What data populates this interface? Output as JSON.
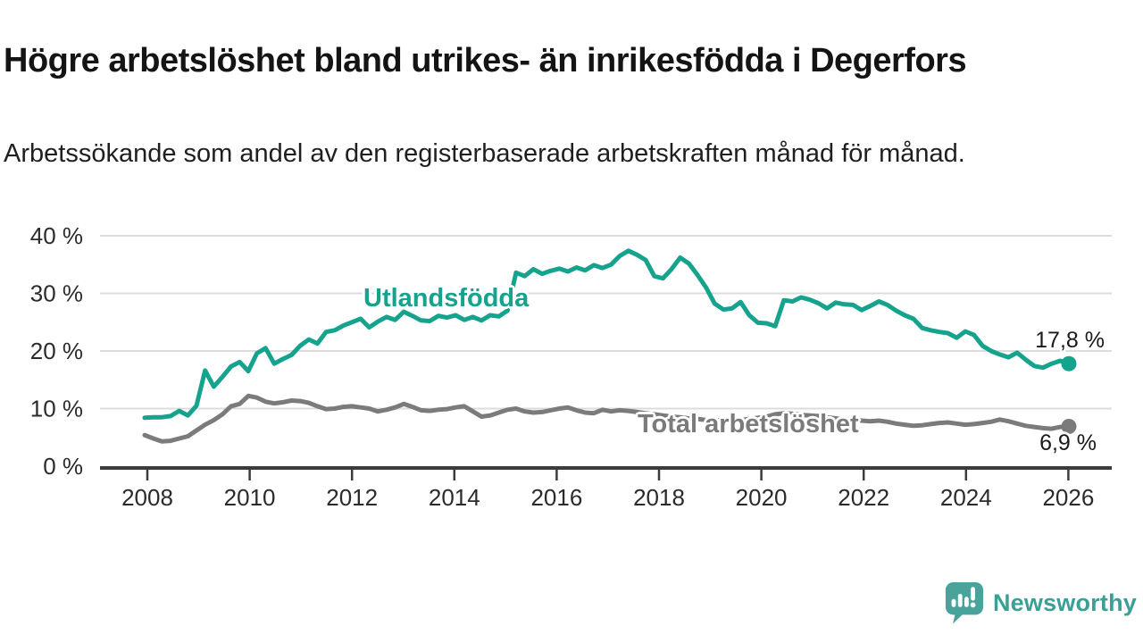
{
  "header": {
    "title": "Högre arbetslöshet bland utrikes- än inrikesfödda i Degerfors",
    "subtitle": "Arbetssökande som andel av den registerbaserade arbetskraften månad för månad."
  },
  "chart_data": {
    "type": "line",
    "title": "Högre arbetslöshet bland utrikes- än inrikesfödda i Degerfors",
    "x_unit": "year (monthly data, sampled every 2nd month)",
    "x_start_year": 2008.0,
    "x_end_year": 2025.9,
    "x_axis": {
      "ticks": [
        2008,
        2010,
        2012,
        2014,
        2016,
        2018,
        2020,
        2022,
        2024,
        2026
      ]
    },
    "y_axis": {
      "ticks": [
        0,
        10,
        20,
        30,
        40
      ],
      "tick_suffix": " %",
      "min": 0,
      "max": 40,
      "grid": true
    },
    "series": [
      {
        "name": "Utlandsfödda",
        "color": "#16a38d",
        "end_value": 17.8,
        "end_label": "17,8 %",
        "values": [
          8.4,
          8.5,
          8.5,
          8.7,
          9.6,
          8.8,
          10.5,
          16.6,
          13.8,
          15.5,
          17.3,
          18.1,
          16.5,
          19.6,
          20.5,
          17.8,
          18.6,
          19.3,
          20.9,
          22.0,
          21.3,
          23.3,
          23.6,
          24.4,
          25.0,
          25.6,
          24.1,
          25.1,
          25.9,
          25.4,
          26.8,
          26.1,
          25.3,
          25.2,
          26.1,
          25.8,
          26.2,
          25.4,
          25.9,
          25.3,
          26.2,
          26.0,
          27.0,
          33.6,
          33.0,
          34.2,
          33.4,
          33.9,
          34.3,
          33.8,
          34.5,
          34.0,
          34.9,
          34.4,
          35.0,
          36.5,
          37.4,
          36.7,
          35.8,
          33.0,
          32.6,
          34.2,
          36.2,
          35.2,
          33.2,
          31.0,
          28.2,
          27.2,
          27.4,
          28.5,
          26.2,
          24.9,
          24.8,
          24.3,
          28.8,
          28.6,
          29.3,
          28.9,
          28.3,
          27.4,
          28.4,
          28.1,
          28.0,
          27.1,
          27.8,
          28.6,
          28.0,
          27.0,
          26.2,
          25.6,
          24.0,
          23.6,
          23.3,
          23.1,
          22.3,
          23.4,
          22.8,
          20.9,
          20.0,
          19.4,
          18.9,
          19.7,
          18.5,
          17.4,
          17.1,
          17.8,
          18.3,
          17.8
        ]
      },
      {
        "name": "Total arbetslöshet",
        "color": "#7b7b7b",
        "end_value": 6.9,
        "end_label": "6,9 %",
        "values": [
          5.4,
          4.8,
          4.3,
          4.4,
          4.8,
          5.2,
          6.2,
          7.2,
          8.0,
          9.0,
          10.4,
          10.8,
          12.2,
          11.9,
          11.2,
          10.9,
          11.1,
          11.4,
          11.3,
          11.0,
          10.4,
          9.9,
          10.0,
          10.3,
          10.4,
          10.2,
          10.0,
          9.5,
          9.8,
          10.2,
          10.8,
          10.3,
          9.7,
          9.6,
          9.8,
          9.9,
          10.2,
          10.4,
          9.5,
          8.6,
          8.8,
          9.3,
          9.8,
          10.0,
          9.5,
          9.3,
          9.4,
          9.7,
          10.0,
          10.2,
          9.7,
          9.3,
          9.2,
          9.8,
          9.5,
          9.7,
          9.6,
          9.4,
          9.2,
          9.0,
          8.8,
          8.6,
          8.5,
          8.3,
          8.2,
          8.0,
          8.0,
          7.9,
          7.8,
          8.0,
          8.2,
          8.4,
          8.6,
          9.0,
          9.2,
          9.1,
          8.9,
          8.8,
          8.7,
          8.5,
          8.3,
          8.1,
          8.0,
          7.9,
          7.8,
          7.9,
          7.7,
          7.4,
          7.2,
          7.0,
          7.1,
          7.3,
          7.5,
          7.6,
          7.4,
          7.2,
          7.3,
          7.5,
          7.7,
          8.1,
          7.8,
          7.4,
          7.0,
          6.8,
          6.6,
          6.5,
          6.8,
          6.9
        ]
      }
    ],
    "colors": {
      "grid": "#dcdcdc",
      "axis": "#3c3c3c",
      "tick_text": "#2b2b2b"
    },
    "legend_position": "inline-labels"
  },
  "footer": {
    "brand": "Newsworthy",
    "brand_color": "#3aa096",
    "logo_icon": "speech-bubble-bar-chart-icon"
  }
}
